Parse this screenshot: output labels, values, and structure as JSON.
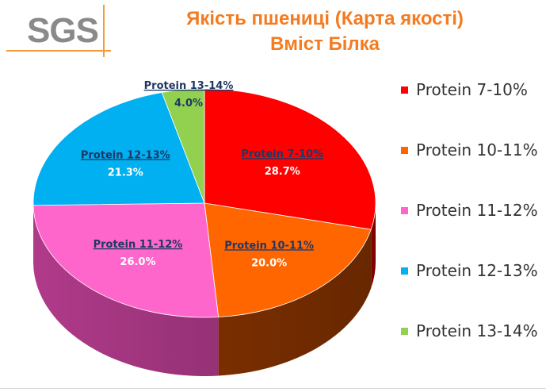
{
  "logo": {
    "text": "SGS"
  },
  "header": {
    "title_line1": "Якість пшениці (Карта якості)",
    "title_line2": "Вміст Білка"
  },
  "colors": {
    "title": "#f47b20",
    "label_text": "#1f3864",
    "logo_gray": "#8a8a8a",
    "logo_accent": "#f39c3a"
  },
  "chart_data": {
    "type": "pie",
    "style": "3d",
    "legend_position": "right",
    "categories": [
      "Protein 7-10%",
      "Protein 10-11%",
      "Protein 11-12%",
      "Protein 12-13%",
      "Protein 13-14%"
    ],
    "values": [
      28.7,
      20.0,
      26.0,
      21.3,
      4.0
    ],
    "value_labels": [
      "28.7%",
      "20.0%",
      "26.0%",
      "21.3%",
      "4.0%"
    ],
    "colors": [
      "#ff0000",
      "#ff6600",
      "#ff66cc",
      "#00b0f0",
      "#92d050"
    ],
    "side_colors": [
      "#8b0000",
      "#7a2e00",
      "#b03a8a",
      "#00607f",
      "#4a7a1f"
    ]
  }
}
